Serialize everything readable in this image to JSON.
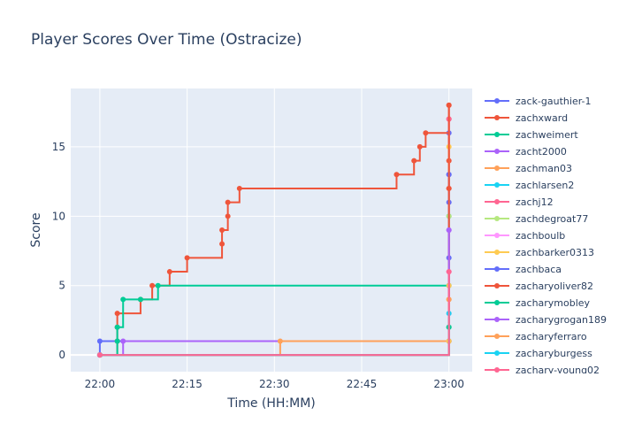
{
  "chart_data": {
    "type": "line",
    "title": "Player Scores Over Time (Ostracize)",
    "xlabel": "Time (HH:MM)",
    "ylabel": "Score",
    "x_unit": "HH:MM",
    "xlim": [
      "21:55",
      "23:04"
    ],
    "ylim": [
      -1.2,
      19.2
    ],
    "x_ticks": [
      "22:00",
      "22:15",
      "22:30",
      "22:45",
      "23:00"
    ],
    "y_ticks": [
      0,
      5,
      10,
      15
    ],
    "grid": true,
    "legend_position": "right",
    "line_shape": "step",
    "series": [
      {
        "name": "zack-gauthier-1",
        "color": "#636efa",
        "x": [
          "22:00",
          "22:00",
          "23:00",
          "23:00",
          "23:00",
          "23:00",
          "23:00"
        ],
        "y": [
          0,
          1,
          1,
          7,
          11,
          13,
          16
        ]
      },
      {
        "name": "zachxward",
        "color": "#ef553b",
        "x": [
          "22:00",
          "22:03",
          "22:03",
          "22:03",
          "22:07",
          "22:09",
          "22:12",
          "22:15",
          "22:21",
          "22:21",
          "22:22",
          "22:22",
          "22:24",
          "22:51",
          "22:54",
          "22:55",
          "22:56",
          "23:00",
          "23:00",
          "23:00",
          "23:00"
        ],
        "y": [
          0,
          1,
          2,
          3,
          4,
          5,
          6,
          7,
          8,
          9,
          10,
          11,
          12,
          13,
          14,
          15,
          16,
          12,
          14,
          17,
          18
        ]
      },
      {
        "name": "zachweimert",
        "color": "#00cc96",
        "x": [
          "22:00",
          "22:03",
          "22:03",
          "22:04",
          "22:07",
          "22:10",
          "23:00",
          "23:00"
        ],
        "y": [
          0,
          1,
          2,
          4,
          4,
          5,
          5,
          10
        ]
      },
      {
        "name": "zacht2000",
        "color": "#ab63fa",
        "x": [
          "22:00",
          "22:04",
          "23:00",
          "23:00"
        ],
        "y": [
          0,
          1,
          1,
          9
        ]
      },
      {
        "name": "zachman03",
        "color": "#ffa15a",
        "x": [
          "22:00",
          "22:31",
          "23:00",
          "23:00"
        ],
        "y": [
          0,
          1,
          1,
          4
        ]
      },
      {
        "name": "zachlarsen2",
        "color": "#19d3f3",
        "x": [
          "22:00",
          "23:00"
        ],
        "y": [
          0,
          2
        ]
      },
      {
        "name": "zachj12",
        "color": "#ff6692",
        "x": [
          "22:00",
          "23:00",
          "23:00"
        ],
        "y": [
          0,
          6,
          17
        ]
      },
      {
        "name": "zachdegroat77",
        "color": "#b6e880",
        "x": [
          "22:00",
          "23:00",
          "23:00"
        ],
        "y": [
          0,
          2,
          10
        ]
      },
      {
        "name": "zachboulb",
        "color": "#ff97ff",
        "x": [
          "22:00",
          "23:00",
          "23:00"
        ],
        "y": [
          0,
          3,
          6
        ]
      },
      {
        "name": "zachbarker0313",
        "color": "#fecb52",
        "x": [
          "22:00",
          "23:00",
          "23:00",
          "23:00"
        ],
        "y": [
          0,
          1,
          5,
          15
        ]
      },
      {
        "name": "zachbaca",
        "color": "#636efa",
        "x": [
          "22:00",
          "23:00"
        ],
        "y": [
          0,
          13
        ]
      },
      {
        "name": "zacharyoliver82",
        "color": "#ef553b",
        "x": [
          "22:00",
          "23:00",
          "23:00"
        ],
        "y": [
          0,
          12,
          18
        ]
      },
      {
        "name": "zacharymobley",
        "color": "#00cc96",
        "x": [
          "22:00",
          "23:00"
        ],
        "y": [
          0,
          2
        ]
      },
      {
        "name": "zacharygrogan189",
        "color": "#ab63fa",
        "x": [
          "22:00",
          "23:00"
        ],
        "y": [
          0,
          9
        ]
      },
      {
        "name": "zacharyferraro",
        "color": "#ffa15a",
        "x": [
          "22:00",
          "23:00"
        ],
        "y": [
          0,
          4
        ]
      },
      {
        "name": "zacharyburgess",
        "color": "#19d3f3",
        "x": [
          "22:00",
          "23:00"
        ],
        "y": [
          0,
          3
        ]
      },
      {
        "name": "zachary-young02",
        "color": "#ff6692",
        "x": [
          "22:00",
          "23:00"
        ],
        "y": [
          0,
          6
        ]
      }
    ]
  }
}
